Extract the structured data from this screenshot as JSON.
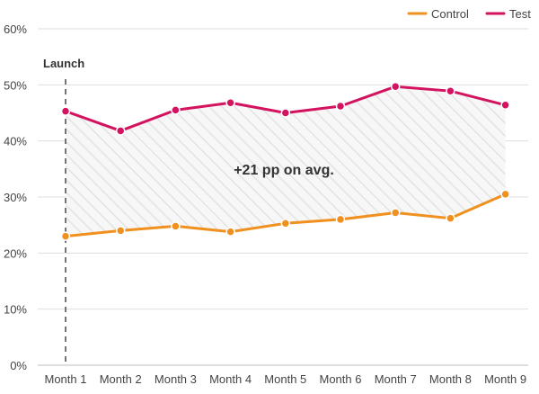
{
  "chart_data": {
    "type": "line",
    "title": "",
    "xlabel": "",
    "ylabel": "",
    "categories": [
      "Month 1",
      "Month 2",
      "Month 3",
      "Month 4",
      "Month 5",
      "Month 6",
      "Month 7",
      "Month 8",
      "Month 9"
    ],
    "y_ticks": [
      "0%",
      "10%",
      "20%",
      "30%",
      "40%",
      "50%",
      "60%"
    ],
    "ylim": [
      0,
      60
    ],
    "grid": true,
    "legend_position": "top-right",
    "series": [
      {
        "name": "Control",
        "color": "#F0901E",
        "values": [
          23.0,
          24.0,
          24.8,
          23.8,
          25.3,
          26.0,
          27.2,
          26.2,
          30.5
        ]
      },
      {
        "name": "Test",
        "color": "#D3135F",
        "values": [
          45.3,
          41.8,
          45.5,
          46.8,
          45.0,
          46.2,
          49.7,
          48.9,
          46.4
        ]
      }
    ],
    "annotations": {
      "launch_label": "Launch",
      "launch_category": "Month 1",
      "gap_label": "+21 pp on avg."
    }
  }
}
